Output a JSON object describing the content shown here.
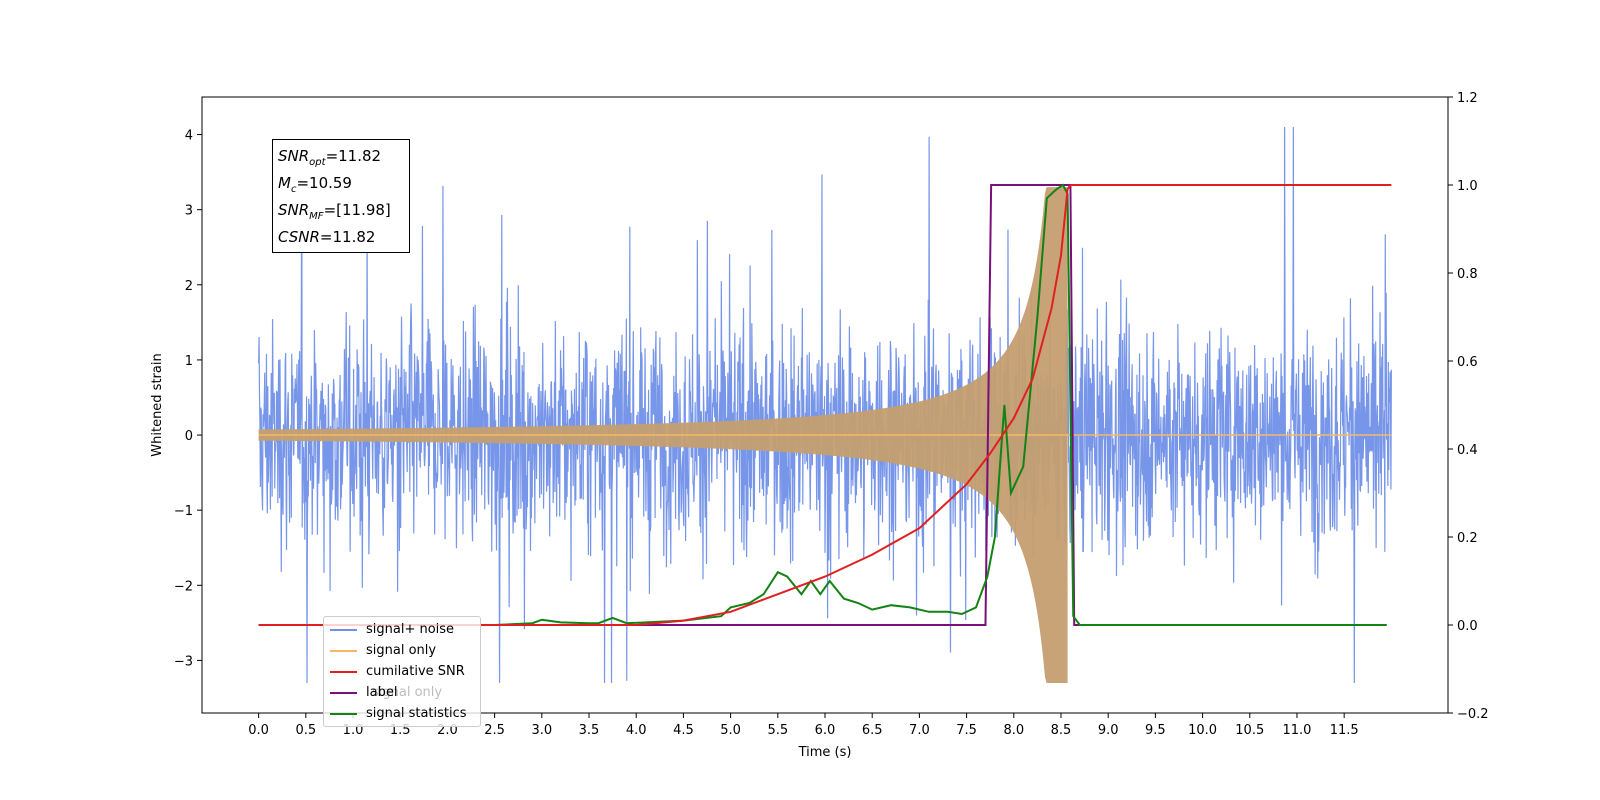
{
  "chart_data": {
    "type": "line",
    "title": "",
    "xlabel": "Time (s)",
    "ylabel": "Whitened strain",
    "y2label": "",
    "xlim": [
      -0.6,
      12.6
    ],
    "ylim": [
      -3.7,
      4.5
    ],
    "y2lim": [
      -0.2,
      1.2
    ],
    "xticks": [
      "0.0",
      "0.5",
      "1.0",
      "1.5",
      "2.0",
      "2.5",
      "3.0",
      "3.5",
      "4.0",
      "4.5",
      "5.0",
      "5.5",
      "6.0",
      "6.5",
      "7.0",
      "7.5",
      "8.0",
      "8.5",
      "9.0",
      "9.5",
      "10.0",
      "10.5",
      "11.0",
      "11.5"
    ],
    "yticks": [
      "4",
      "3",
      "2",
      "1",
      "0",
      "−1",
      "−2",
      "−3"
    ],
    "y2ticks": [
      "1.2",
      "1.0",
      "0.8",
      "0.6",
      "0.4",
      "0.2",
      "0.0",
      "−0.2"
    ],
    "grid": false,
    "legend_position": "lower-left",
    "series": [
      {
        "name": "signal+ noise",
        "axis": "left",
        "color": "#7090e8",
        "description": "dense whitened noise, roughly ±1.2 with peaks up to 4.1 and down to −3.3, from 0 to 12 s"
      },
      {
        "name": "signal only",
        "axis": "left",
        "color": "#f5b865",
        "chirp": {
          "t_start": 0.0,
          "t_merge": 8.57,
          "t_end": 12.0,
          "peak_amplitude": 3.3
        }
      },
      {
        "name": "cumilative SNR",
        "axis": "right",
        "color": "#e02020",
        "points": [
          [
            0,
            0
          ],
          [
            4,
            0
          ],
          [
            4.5,
            0.01
          ],
          [
            5,
            0.03
          ],
          [
            5.5,
            0.07
          ],
          [
            6,
            0.11
          ],
          [
            6.5,
            0.16
          ],
          [
            7,
            0.22
          ],
          [
            7.5,
            0.32
          ],
          [
            7.75,
            0.39
          ],
          [
            8.0,
            0.47
          ],
          [
            8.2,
            0.56
          ],
          [
            8.4,
            0.72
          ],
          [
            8.5,
            0.84
          ],
          [
            8.57,
            0.99
          ],
          [
            8.6,
            1.0
          ],
          [
            12,
            1.0
          ]
        ]
      },
      {
        "name": "label",
        "axis": "right",
        "color": "#7a0e7a",
        "points": [
          [
            0,
            0
          ],
          [
            7.7,
            0
          ],
          [
            7.76,
            1.0
          ],
          [
            8.6,
            1.0
          ],
          [
            8.64,
            0
          ],
          [
            11.95,
            0
          ]
        ]
      },
      {
        "name": "signal statistics",
        "axis": "right",
        "color": "#148214",
        "points": [
          [
            0,
            0
          ],
          [
            2.5,
            0
          ],
          [
            2.9,
            0.004
          ],
          [
            3.0,
            0.012
          ],
          [
            3.2,
            0.006
          ],
          [
            3.5,
            0.004
          ],
          [
            3.6,
            0.004
          ],
          [
            3.75,
            0.016
          ],
          [
            3.9,
            0.004
          ],
          [
            4.5,
            0.01
          ],
          [
            4.9,
            0.02
          ],
          [
            5.0,
            0.04
          ],
          [
            5.2,
            0.05
          ],
          [
            5.35,
            0.07
          ],
          [
            5.5,
            0.12
          ],
          [
            5.6,
            0.11
          ],
          [
            5.75,
            0.07
          ],
          [
            5.85,
            0.1
          ],
          [
            5.95,
            0.07
          ],
          [
            6.05,
            0.1
          ],
          [
            6.2,
            0.06
          ],
          [
            6.35,
            0.05
          ],
          [
            6.5,
            0.035
          ],
          [
            6.7,
            0.045
          ],
          [
            6.9,
            0.04
          ],
          [
            7.1,
            0.03
          ],
          [
            7.3,
            0.03
          ],
          [
            7.45,
            0.025
          ],
          [
            7.6,
            0.04
          ],
          [
            7.72,
            0.11
          ],
          [
            7.8,
            0.2
          ],
          [
            7.85,
            0.35
          ],
          [
            7.9,
            0.5
          ],
          [
            7.97,
            0.3
          ],
          [
            8.1,
            0.36
          ],
          [
            8.25,
            0.7
          ],
          [
            8.35,
            0.97
          ],
          [
            8.45,
            0.99
          ],
          [
            8.52,
            1.0
          ],
          [
            8.57,
            0.98
          ],
          [
            8.6,
            0.5
          ],
          [
            8.63,
            0.02
          ],
          [
            8.7,
            0
          ],
          [
            11.95,
            0
          ]
        ]
      }
    ],
    "legend": [
      "signal+ noise",
      "signal only",
      "cumilative SNR",
      "label",
      "signal statistics"
    ],
    "legend_hidden_text": "signal only",
    "annotation": {
      "snr_opt": {
        "sym": "SNR",
        "sub": "opt",
        "value": "=11.82"
      },
      "mc": {
        "sym": "M",
        "sub": "c",
        "value": "=10.59"
      },
      "snr_mf": {
        "sym": "SNR",
        "sub": "MF",
        "value": "=[11.98]"
      },
      "csnr": {
        "sym": "CSNR",
        "value": "=11.82"
      }
    }
  }
}
